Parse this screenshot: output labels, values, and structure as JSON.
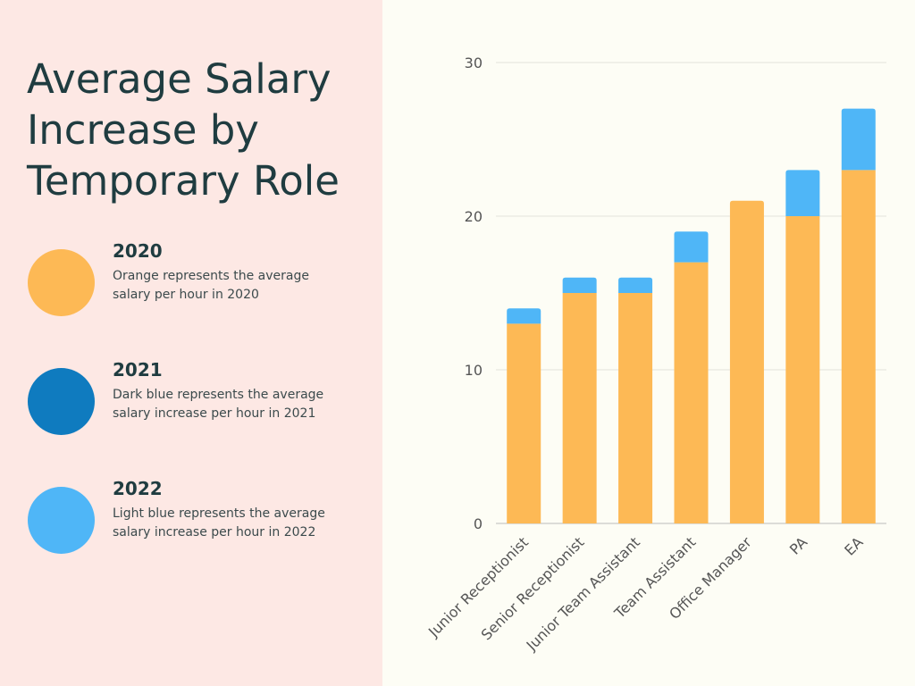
{
  "title": "Average Salary Increase by Temporary Role",
  "legend": [
    {
      "year": "2020",
      "description": "Orange represents the average salary per hour  in 2020",
      "color": "#fdb955"
    },
    {
      "year": "2021",
      "description": "Dark blue represents the average salary increase per hour in 2021",
      "color": "#0f7bbf"
    },
    {
      "year": "2022",
      "description": "Light blue represents the average salary increase per hour in 2022",
      "color": "#4fb6f7"
    }
  ],
  "chart_data": {
    "type": "bar",
    "stacked": true,
    "categories": [
      "Junior Receptionist",
      "Senior Receptionist",
      "Junior Team Assistant",
      "Team Assistant",
      "Office Manager",
      "PA",
      "EA"
    ],
    "series": [
      {
        "name": "2020",
        "values": [
          13,
          15,
          15,
          17,
          21,
          20,
          23
        ],
        "color": "#fdb955"
      },
      {
        "name": "2021",
        "values": [
          0,
          0,
          0,
          0,
          0,
          0,
          0
        ],
        "color": "#0f7bbf"
      },
      {
        "name": "2022",
        "values": [
          1,
          1,
          1,
          2,
          0,
          3,
          4
        ],
        "color": "#4fb6f7"
      }
    ],
    "ylim": [
      0,
      30
    ],
    "yticks": [
      0,
      10,
      20,
      30
    ],
    "grid": true,
    "xlabel": "",
    "ylabel": ""
  }
}
